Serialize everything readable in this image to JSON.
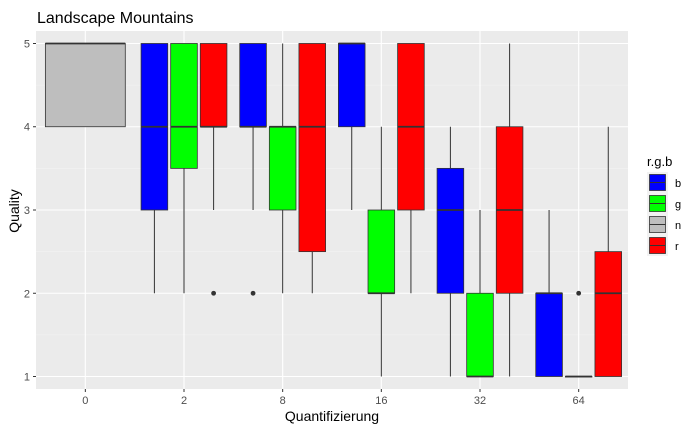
{
  "chart_data": {
    "type": "box",
    "title": "Landscape Mountains",
    "xlabel": "Quantifizierung",
    "ylabel": "Quality",
    "ylim": [
      0.85,
      5.15
    ],
    "yticks": [
      1,
      2,
      3,
      4,
      5
    ],
    "categories": [
      "0",
      "2",
      "8",
      "16",
      "32",
      "64"
    ],
    "grid": true,
    "legend": {
      "title": "r.g.b",
      "position": "right",
      "entries": [
        {
          "key": "b",
          "label": "b",
          "color": "#0000ff"
        },
        {
          "key": "g",
          "label": "g",
          "color": "#00ff00"
        },
        {
          "key": "n",
          "label": "n",
          "color": "#bebebe"
        },
        {
          "key": "r",
          "label": "r",
          "color": "#ff0000"
        }
      ]
    },
    "boxes": [
      {
        "category": "0",
        "group": "n",
        "min": 4,
        "q1": 4,
        "median": 5,
        "q3": 5,
        "max": 5,
        "outliers": []
      },
      {
        "category": "2",
        "group": "b",
        "min": 2,
        "q1": 3,
        "median": 4,
        "q3": 5,
        "max": 5,
        "outliers": []
      },
      {
        "category": "2",
        "group": "g",
        "min": 2,
        "q1": 3.5,
        "median": 4,
        "q3": 5,
        "max": 5,
        "outliers": []
      },
      {
        "category": "2",
        "group": "r",
        "min": 3,
        "q1": 4,
        "median": 4,
        "q3": 5,
        "max": 5,
        "outliers": [
          2
        ]
      },
      {
        "category": "8",
        "group": "b",
        "min": 3,
        "q1": 4,
        "median": 4,
        "q3": 5,
        "max": 5,
        "outliers": [
          2
        ]
      },
      {
        "category": "8",
        "group": "g",
        "min": 2,
        "q1": 3,
        "median": 4,
        "q3": 4,
        "max": 5,
        "outliers": []
      },
      {
        "category": "8",
        "group": "r",
        "min": 2,
        "q1": 2.5,
        "median": 4,
        "q3": 5,
        "max": 5,
        "outliers": []
      },
      {
        "category": "16",
        "group": "b",
        "min": 3,
        "q1": 4,
        "median": 5,
        "q3": 5,
        "max": 5,
        "outliers": []
      },
      {
        "category": "16",
        "group": "g",
        "min": 1,
        "q1": 2,
        "median": 2,
        "q3": 3,
        "max": 4,
        "outliers": []
      },
      {
        "category": "16",
        "group": "r",
        "min": 2,
        "q1": 3,
        "median": 4,
        "q3": 5,
        "max": 5,
        "outliers": []
      },
      {
        "category": "32",
        "group": "b",
        "min": 1,
        "q1": 2,
        "median": 3,
        "q3": 3.5,
        "max": 4,
        "outliers": []
      },
      {
        "category": "32",
        "group": "g",
        "min": 1,
        "q1": 1,
        "median": 1,
        "q3": 2,
        "max": 3,
        "outliers": []
      },
      {
        "category": "32",
        "group": "r",
        "min": 1,
        "q1": 2,
        "median": 3,
        "q3": 4,
        "max": 5,
        "outliers": []
      },
      {
        "category": "64",
        "group": "b",
        "min": 1,
        "q1": 1,
        "median": 2,
        "q3": 2,
        "max": 3,
        "outliers": []
      },
      {
        "category": "64",
        "group": "g",
        "min": 1,
        "q1": 1,
        "median": 1,
        "q3": 1,
        "max": 1,
        "outliers": [
          2
        ]
      },
      {
        "category": "64",
        "group": "r",
        "min": 1,
        "q1": 1,
        "median": 2,
        "q3": 2.5,
        "max": 4,
        "outliers": []
      }
    ]
  }
}
